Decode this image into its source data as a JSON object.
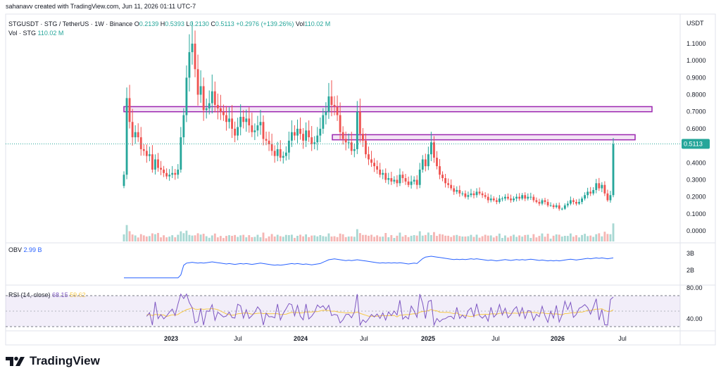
{
  "credit": "sahanavv created with TradingView.com, Jun 11, 2026 01:11 UTC-7",
  "brand": "TradingView",
  "legend": {
    "symbol": "STGUSDT · STG / TetherUS · 1W · Binance",
    "o_label": "O",
    "o": "0.2139",
    "h_label": "H",
    "h": "0.5393",
    "l_label": "L",
    "l": "0.2130",
    "c_label": "C",
    "c": "0.5113",
    "change": "+0.2976 (+139.26%)",
    "vol_label": "Vol",
    "vol": "110.02 M",
    "vol_line_label": "Vol · STG",
    "vol_line_value": "110.02 M"
  },
  "obv_legend": {
    "label": "OBV",
    "value": "2.99 B"
  },
  "rsi_legend": {
    "label": "RSI (14, close)",
    "value": "68.15",
    "ma_value": "59.62"
  },
  "colors": {
    "up": "#26a69a",
    "down": "#ef5350",
    "upVol": "#a8d8d3",
    "downVol": "#f5b5b3",
    "obv": "#2962ff",
    "rsi": "#7e57c2",
    "rsiMa": "#f7c948",
    "zone": "#9c27b0",
    "lastPrice": "#26a69a"
  },
  "chart_data": [
    {
      "type": "candlestick",
      "title": "STGUSDT · STG / TetherUS · 1W · Binance",
      "ylabel": "USDT",
      "y_ticks": [
        "1.1000",
        "1.0000",
        "0.9000",
        "0.8000",
        "0.7000",
        "0.6000",
        "0.4000",
        "0.3000",
        "0.2000",
        "0.1000",
        "0.0000"
      ],
      "ylim": [
        0,
        1.2
      ],
      "x_ticks": [
        "2023",
        "Jul",
        "2024",
        "Jul",
        "2025",
        "Jul",
        "2026",
        "Jul"
      ],
      "last_price": "0.5113",
      "resistance_zones": [
        {
          "low": 0.7,
          "high": 0.73,
          "start": "2022-09",
          "end": "2026-10"
        },
        {
          "low": 0.535,
          "high": 0.565,
          "start": "2024-05",
          "end": "2026-09"
        }
      ],
      "weekly_closes": [
        0.33,
        0.78,
        0.64,
        0.55,
        0.58,
        0.55,
        0.48,
        0.47,
        0.44,
        0.45,
        0.36,
        0.42,
        0.37,
        0.36,
        0.34,
        0.32,
        0.33,
        0.34,
        0.33,
        0.36,
        0.55,
        0.68,
        0.9,
        1.05,
        1.1,
        0.95,
        0.8,
        0.85,
        0.71,
        0.72,
        0.75,
        0.82,
        0.74,
        0.72,
        0.7,
        0.68,
        0.64,
        0.66,
        0.6,
        0.56,
        0.61,
        0.67,
        0.64,
        0.66,
        0.62,
        0.58,
        0.59,
        0.62,
        0.64,
        0.54,
        0.53,
        0.51,
        0.47,
        0.44,
        0.48,
        0.43,
        0.44,
        0.46,
        0.53,
        0.58,
        0.56,
        0.6,
        0.57,
        0.53,
        0.59,
        0.55,
        0.51,
        0.52,
        0.56,
        0.6,
        0.68,
        0.7,
        0.79,
        0.74,
        0.73,
        0.68,
        0.58,
        0.54,
        0.52,
        0.52,
        0.47,
        0.48,
        0.7,
        0.57,
        0.53,
        0.45,
        0.42,
        0.4,
        0.38,
        0.36,
        0.33,
        0.34,
        0.3,
        0.31,
        0.29,
        0.3,
        0.28,
        0.33,
        0.31,
        0.29,
        0.27,
        0.29,
        0.3,
        0.27,
        0.36,
        0.42,
        0.38,
        0.45,
        0.52,
        0.43,
        0.38,
        0.33,
        0.31,
        0.28,
        0.27,
        0.25,
        0.23,
        0.24,
        0.22,
        0.22,
        0.2,
        0.21,
        0.22,
        0.21,
        0.23,
        0.22,
        0.21,
        0.2,
        0.18,
        0.19,
        0.18,
        0.17,
        0.19,
        0.19,
        0.2,
        0.19,
        0.18,
        0.19,
        0.2,
        0.19,
        0.21,
        0.19,
        0.2,
        0.2,
        0.18,
        0.17,
        0.16,
        0.18,
        0.17,
        0.15,
        0.15,
        0.14,
        0.15,
        0.13,
        0.13,
        0.15,
        0.16,
        0.18,
        0.17,
        0.16,
        0.17,
        0.19,
        0.21,
        0.23,
        0.22,
        0.24,
        0.28,
        0.25,
        0.27,
        0.22,
        0.18,
        0.21,
        0.51
      ]
    },
    {
      "type": "line",
      "name": "OBV",
      "y_ticks": [
        "3B",
        "2B"
      ],
      "last_value": "2.99 B"
    },
    {
      "type": "line",
      "name": "RSI (14, close)",
      "y_ticks": [
        "80.00",
        "40.00"
      ],
      "upper_band": 70,
      "lower_band": 30,
      "last_value": 68.15,
      "ma_value": 59.62
    }
  ]
}
